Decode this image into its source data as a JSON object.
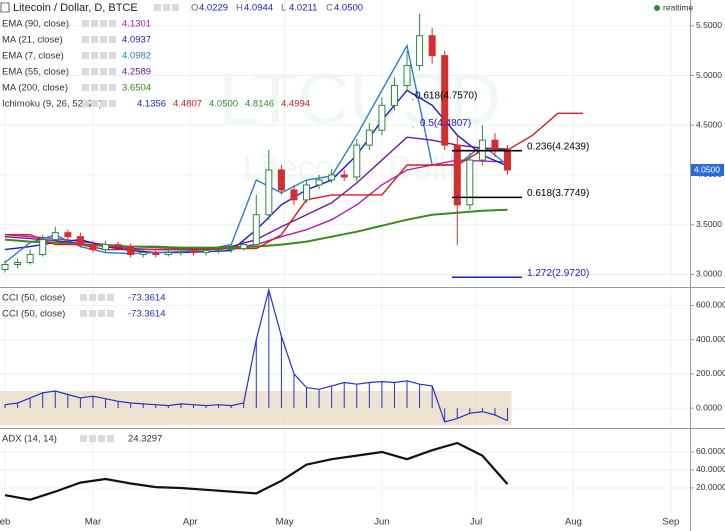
{
  "header": {
    "title": "Litecoin / Dollar, D, BTCE",
    "ohlc": [
      {
        "key": "O",
        "value": "4.0229"
      },
      {
        "key": "H",
        "value": "4.0944"
      },
      {
        "key": "L",
        "value": "4.0211"
      },
      {
        "key": "C",
        "value": "4.0500"
      }
    ],
    "status": "realtime",
    "watermark": [
      "LTCUSD",
      "Litecoin / Dollar"
    ]
  },
  "chart_data": [
    {
      "type": "candlestick",
      "ylim": [
        2.894,
        5.759
      ],
      "yticks": [
        {
          "value": 3,
          "label": "3.0000"
        },
        {
          "value": 3.5,
          "label": "3.5000"
        },
        {
          "value": 4,
          "label": "4.0000"
        },
        {
          "value": 4.5,
          "label": "4.5000"
        },
        {
          "value": 5,
          "label": "5.0000"
        },
        {
          "value": 5.5,
          "label": "5.5000"
        }
      ],
      "grid": true,
      "up_color": "#2b8a3e",
      "down_color": "#d32f2f",
      "x": [
        0,
        4,
        8,
        12,
        16,
        20,
        24,
        28,
        32,
        36,
        40,
        44,
        48,
        52,
        56,
        60,
        64,
        68,
        72,
        76,
        80,
        84,
        88,
        92,
        96,
        100,
        104,
        108,
        112,
        116,
        120,
        124,
        128,
        132,
        136,
        140,
        144,
        148,
        152,
        156,
        160
      ],
      "open": [
        3.05,
        3.1,
        3.12,
        3.2,
        3.35,
        3.42,
        3.38,
        3.3,
        3.25,
        3.3,
        3.28,
        3.2,
        3.22,
        3.2,
        3.22,
        3.23,
        3.22,
        3.24,
        3.25,
        3.26,
        3.3,
        3.6,
        4.05,
        3.85,
        3.75,
        3.9,
        3.95,
        4.0,
        3.98,
        4.3,
        4.45,
        4.7,
        4.9,
        5.1,
        5.4,
        5.2,
        4.3,
        3.7,
        4.15,
        4.35,
        4.25
      ],
      "high": [
        3.14,
        3.16,
        3.25,
        3.4,
        3.48,
        3.45,
        3.42,
        3.34,
        3.34,
        3.33,
        3.31,
        3.26,
        3.25,
        3.25,
        3.27,
        3.26,
        3.27,
        3.28,
        3.29,
        3.34,
        3.8,
        4.25,
        4.1,
        3.9,
        3.95,
        4.0,
        4.06,
        4.05,
        4.36,
        4.52,
        4.78,
        4.98,
        5.25,
        5.62,
        5.48,
        5.25,
        4.4,
        4.22,
        4.5,
        4.42,
        4.3
      ],
      "low": [
        3.02,
        3.06,
        3.1,
        3.18,
        3.32,
        3.34,
        3.27,
        3.22,
        3.22,
        3.25,
        3.17,
        3.17,
        3.17,
        3.18,
        3.19,
        3.19,
        3.19,
        3.21,
        3.22,
        3.24,
        3.28,
        3.55,
        3.8,
        3.7,
        3.72,
        3.86,
        3.92,
        3.94,
        3.94,
        4.25,
        4.4,
        4.65,
        4.85,
        5.05,
        5.12,
        4.25,
        3.3,
        3.65,
        4.1,
        4.18,
        4.0
      ],
      "close": [
        3.1,
        3.12,
        3.2,
        3.35,
        3.42,
        3.38,
        3.3,
        3.25,
        3.3,
        3.28,
        3.2,
        3.22,
        3.2,
        3.22,
        3.23,
        3.22,
        3.24,
        3.25,
        3.26,
        3.3,
        3.6,
        4.05,
        3.85,
        3.75,
        3.9,
        3.95,
        4.0,
        3.98,
        4.3,
        4.45,
        4.7,
        4.9,
        5.1,
        5.4,
        5.2,
        4.3,
        3.7,
        4.15,
        4.35,
        4.25,
        4.05
      ],
      "series": [
        {
          "name": "EMA (90, close)",
          "color": "#b020b0",
          "legend_value": "4.1301",
          "x": [
            0,
            8,
            16,
            24,
            32,
            40,
            48,
            56,
            64,
            72,
            80,
            88,
            96,
            104,
            112,
            120,
            128,
            136,
            144,
            152,
            160
          ],
          "values": [
            3.4,
            3.38,
            3.36,
            3.33,
            3.3,
            3.28,
            3.27,
            3.26,
            3.26,
            3.27,
            3.3,
            3.38,
            3.45,
            3.55,
            3.7,
            3.9,
            4.05,
            4.1,
            4.15,
            4.14,
            4.13
          ]
        },
        {
          "name": "MA (21, close)",
          "color": "#1a1ad0",
          "legend_value": "4.0937",
          "x": [
            0,
            8,
            16,
            24,
            32,
            40,
            48,
            56,
            64,
            72,
            80,
            88,
            96,
            104,
            112,
            120,
            128,
            136,
            144,
            152,
            160
          ],
          "values": [
            3.25,
            3.28,
            3.32,
            3.35,
            3.28,
            3.24,
            3.22,
            3.22,
            3.23,
            3.24,
            3.45,
            3.7,
            3.85,
            3.95,
            4.2,
            4.55,
            4.85,
            4.7,
            4.4,
            4.2,
            4.09
          ]
        },
        {
          "name": "EMA (7, close)",
          "color": "#2a7fd4",
          "legend_value": "4.0982",
          "x": [
            0,
            8,
            16,
            24,
            32,
            40,
            48,
            56,
            64,
            72,
            80,
            88,
            96,
            104,
            112,
            120,
            128,
            136,
            144,
            152,
            160
          ],
          "values": [
            3.12,
            3.32,
            3.4,
            3.28,
            3.22,
            3.21,
            3.22,
            3.23,
            3.25,
            3.3,
            3.95,
            3.82,
            3.95,
            3.99,
            4.4,
            4.85,
            5.3,
            4.1,
            4.1,
            4.3,
            4.1
          ]
        },
        {
          "name": "EMA (55, close)",
          "color": "#6a1b9a",
          "legend_value": "4.2589",
          "x": [
            0,
            8,
            16,
            24,
            32,
            40,
            48,
            56,
            64,
            72,
            80,
            88,
            96,
            104,
            112,
            120,
            128,
            136,
            144,
            152,
            160
          ],
          "values": [
            3.38,
            3.36,
            3.34,
            3.31,
            3.28,
            3.26,
            3.25,
            3.25,
            3.26,
            3.28,
            3.35,
            3.48,
            3.6,
            3.72,
            3.92,
            4.15,
            4.38,
            4.35,
            4.3,
            4.27,
            4.26
          ]
        },
        {
          "name": "MA (200, close)",
          "color": "#3a8a1e",
          "legend_value": "3.6504",
          "x": [
            0,
            8,
            16,
            24,
            32,
            40,
            48,
            56,
            64,
            72,
            80,
            88,
            96,
            104,
            112,
            120,
            128,
            136,
            144,
            152,
            160
          ],
          "values": [
            3.35,
            3.33,
            3.32,
            3.3,
            3.29,
            3.28,
            3.28,
            3.27,
            3.27,
            3.27,
            3.28,
            3.3,
            3.33,
            3.38,
            3.43,
            3.49,
            3.55,
            3.6,
            3.62,
            3.64,
            3.65
          ]
        },
        {
          "name": "Ichimoku (9, 26, 52, 26)",
          "color": "#d62020",
          "legend_values": [
            "4.1356",
            "4.4807",
            "4.0500",
            "4.8146",
            "4.4994"
          ],
          "legend_colors": [
            "#1a1ad0",
            "#d62020",
            "#2b8a3e",
            "#2b8a3e",
            "#d62020"
          ],
          "x": [
            0,
            8,
            16,
            24,
            32,
            40,
            48,
            56,
            64,
            72,
            80,
            88,
            96,
            104,
            112,
            120,
            128,
            136,
            144,
            152,
            160,
            168,
            176,
            184
          ],
          "values": [
            3.4,
            3.4,
            3.3,
            3.3,
            3.25,
            3.25,
            3.25,
            3.25,
            3.25,
            3.26,
            3.26,
            3.4,
            3.75,
            3.8,
            3.8,
            3.8,
            4.1,
            4.1,
            4.1,
            4.25,
            4.25,
            4.4,
            4.62,
            4.62
          ]
        }
      ],
      "annotations": [
        {
          "label": "0.618(4.7570)",
          "value": 4.757,
          "color": "#000000",
          "line": false
        },
        {
          "label": "0.5(4.4807)",
          "value": 4.4807,
          "color": "#1a1ad0",
          "line": false
        },
        {
          "label": "0.236(4.2439)",
          "value": 4.2439,
          "color": "#000000",
          "line": true
        },
        {
          "label": "0.618(3.7749)",
          "value": 3.7749,
          "color": "#000000",
          "line": true
        },
        {
          "label": "1.272(2.9720)",
          "value": 2.972,
          "color": "#1a1ad0",
          "line": true
        }
      ]
    },
    {
      "type": "histogram-line",
      "ylim": [
        -110,
        690
      ],
      "band": [
        -100,
        100
      ],
      "band_color": "#e8dcc4",
      "yticks": [
        {
          "value": 0,
          "label": "0.0000"
        },
        {
          "value": 200,
          "label": "200.0000"
        },
        {
          "value": 400,
          "label": "400.0000"
        },
        {
          "value": 600,
          "label": "600.0000"
        }
      ],
      "legend": [
        {
          "name": "CCI (50, close)",
          "value": "-73.3614"
        },
        {
          "name": "CCI (50, close)",
          "value": "-73.3614"
        }
      ],
      "color": "#2233cc",
      "x": [
        0,
        4,
        8,
        12,
        16,
        20,
        24,
        28,
        32,
        36,
        40,
        44,
        48,
        52,
        56,
        60,
        64,
        68,
        72,
        76,
        80,
        84,
        88,
        92,
        96,
        100,
        104,
        108,
        112,
        116,
        120,
        124,
        128,
        132,
        136,
        140,
        144,
        148,
        152,
        156,
        160
      ],
      "values": [
        20,
        30,
        60,
        90,
        100,
        80,
        60,
        70,
        55,
        40,
        30,
        25,
        20,
        15,
        25,
        20,
        15,
        20,
        15,
        30,
        400,
        690,
        420,
        200,
        120,
        110,
        130,
        150,
        140,
        150,
        155,
        150,
        160,
        140,
        130,
        -80,
        -60,
        -30,
        -20,
        -40,
        -73.3614
      ]
    },
    {
      "type": "line",
      "ylim": [
        -27.8,
        84.4
      ],
      "yticks": [
        {
          "value": 20,
          "label": "20.0000"
        },
        {
          "value": 40,
          "label": "40.0000"
        },
        {
          "value": 60,
          "label": "60.0000"
        }
      ],
      "legend": [
        {
          "name": "ADX (14, 14)",
          "value": "24.3297"
        }
      ],
      "color": "#111111",
      "x": [
        0,
        8,
        16,
        24,
        32,
        40,
        48,
        56,
        64,
        72,
        80,
        88,
        96,
        104,
        112,
        120,
        128,
        136,
        144,
        152,
        160
      ],
      "values": [
        12,
        7,
        16,
        26,
        30,
        25,
        21,
        20,
        18,
        16,
        14,
        28,
        46,
        52,
        56,
        60,
        52,
        62,
        70,
        56,
        24.3297
      ],
      "xlim": [
        -1.6,
        218.1
      ],
      "xticks": [
        {
          "value": 0,
          "label": "eb"
        },
        {
          "value": 28,
          "label": "Mar"
        },
        {
          "value": 59,
          "label": "Apr"
        },
        {
          "value": 89,
          "label": "May"
        },
        {
          "value": 120,
          "label": "Jun"
        },
        {
          "value": 150,
          "label": "Jul"
        },
        {
          "value": 181,
          "label": "Aug"
        },
        {
          "value": 212,
          "label": "Sep"
        }
      ]
    }
  ]
}
